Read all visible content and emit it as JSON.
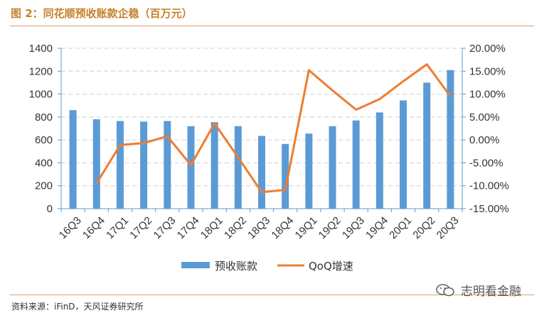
{
  "header": {
    "title": "图 2：同花顺预收账款企稳（百万元）"
  },
  "footer": {
    "source": "资料来源：iFinD，天风证券研究所"
  },
  "watermark": {
    "text": "志明看金融"
  },
  "chart_data": {
    "type": "bar",
    "categories": [
      "16Q3",
      "16Q4",
      "17Q1",
      "17Q2",
      "17Q3",
      "17Q4",
      "18Q1",
      "18Q2",
      "18Q3",
      "18Q4",
      "19Q1",
      "19Q2",
      "19Q3",
      "19Q4",
      "20Q1",
      "20Q2",
      "20Q3"
    ],
    "series": [
      {
        "name": "预收账款",
        "type": "bar",
        "axis": "left",
        "color": "#5b9bd5",
        "values": [
          860,
          780,
          765,
          760,
          765,
          720,
          755,
          720,
          635,
          565,
          655,
          720,
          770,
          840,
          945,
          1100,
          1210
        ]
      },
      {
        "name": "QoQ增速",
        "type": "line",
        "axis": "right",
        "color": "#ed7d31",
        "values": [
          null,
          -9.5,
          -1.1,
          -0.7,
          0.8,
          -5.5,
          3.6,
          -3.8,
          -11.4,
          -10.9,
          15.2,
          10.8,
          6.6,
          8.9,
          12.8,
          16.5,
          9.5
        ]
      }
    ],
    "left_axis": {
      "ylim": [
        0,
        1400
      ],
      "ticks": [
        "0",
        "200",
        "400",
        "600",
        "800",
        "1000",
        "1200",
        "1400"
      ]
    },
    "right_axis": {
      "ylim": [
        -15,
        20
      ],
      "ticks": [
        "-15.00%",
        "-10.00%",
        "-5.00%",
        "0.00%",
        "5.00%",
        "10.00%",
        "15.00%",
        "20.00%"
      ]
    },
    "grid": true,
    "legend_position": "bottom",
    "legend": [
      "预收账款",
      "QoQ增速"
    ]
  }
}
